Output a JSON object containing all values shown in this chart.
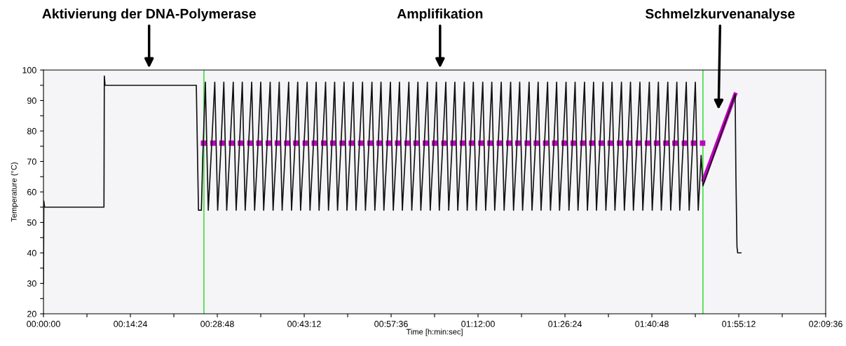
{
  "chart_data": {
    "type": "line",
    "xlabel": "Time [h:min:sec]",
    "ylabel": "Temperature (°C)",
    "xlim": [
      0,
      2.16
    ],
    "ylim": [
      20,
      100
    ],
    "xticks": [
      {
        "value": 0,
        "label": "00:00:00"
      },
      {
        "value": 0.12,
        "label": null
      },
      {
        "value": 0.24,
        "label": "00:14:24"
      },
      {
        "value": 0.36,
        "label": null
      },
      {
        "value": 0.48,
        "label": "00:28:48"
      },
      {
        "value": 0.6,
        "label": null
      },
      {
        "value": 0.72,
        "label": "00:43:12"
      },
      {
        "value": 0.84,
        "label": null
      },
      {
        "value": 0.96,
        "label": "00:57:36"
      },
      {
        "value": 1.08,
        "label": null
      },
      {
        "value": 1.2,
        "label": "01:12:00"
      },
      {
        "value": 1.32,
        "label": null
      },
      {
        "value": 1.44,
        "label": "01:26:24"
      },
      {
        "value": 1.56,
        "label": null
      },
      {
        "value": 1.68,
        "label": "01:40:48"
      },
      {
        "value": 1.8,
        "label": null
      },
      {
        "value": 1.92,
        "label": "01:55:12"
      },
      {
        "value": 2.04,
        "label": null
      },
      {
        "value": 2.16,
        "label": "02:09:36"
      }
    ],
    "yticks": [
      20,
      {
        "value": 25,
        "label": null
      },
      30,
      {
        "value": 35,
        "label": null
      },
      40,
      {
        "value": 45,
        "label": null
      },
      50,
      {
        "value": 55,
        "label": null
      },
      60,
      {
        "value": 65,
        "label": null
      },
      70,
      {
        "value": 75,
        "label": null
      },
      80,
      {
        "value": 85,
        "label": null
      },
      90,
      {
        "value": 95,
        "label": null
      },
      100
    ],
    "grid": false,
    "legend": false,
    "series": [
      {
        "color": "#111111",
        "marker": "none",
        "x": [
          0,
          0.001,
          0.003,
          0.167,
          0.168,
          0.17,
          0.422,
          0.428,
          0.436,
          0.44,
          0.447,
          0.455,
          0.463,
          0.473,
          0.481,
          0.489,
          0.498,
          0.506,
          0.514,
          0.524,
          0.532,
          0.54,
          0.549,
          0.557,
          0.565,
          0.575,
          0.583,
          0.591,
          0.6,
          0.608,
          0.616,
          0.626,
          0.634,
          0.642,
          0.651,
          0.659,
          0.667,
          0.677,
          0.685,
          0.693,
          0.702,
          0.71,
          0.718,
          0.728,
          0.736,
          0.744,
          0.753,
          0.761,
          0.769,
          0.779,
          0.787,
          0.795,
          0.804,
          0.812,
          0.82,
          0.83,
          0.838,
          0.846,
          0.855,
          0.863,
          0.871,
          0.881,
          0.889,
          0.897,
          0.907,
          0.915,
          0.923,
          0.932,
          0.94,
          0.948,
          0.958,
          0.966,
          0.974,
          0.983,
          0.991,
          0.999,
          1.009,
          1.017,
          1.025,
          1.034,
          1.042,
          1.05,
          1.06,
          1.068,
          1.076,
          1.085,
          1.093,
          1.101,
          1.111,
          1.119,
          1.127,
          1.136,
          1.144,
          1.152,
          1.162,
          1.17,
          1.178,
          1.187,
          1.195,
          1.203,
          1.213,
          1.221,
          1.229,
          1.238,
          1.246,
          1.254,
          1.264,
          1.272,
          1.28,
          1.29,
          1.298,
          1.306,
          1.315,
          1.323,
          1.331,
          1.341,
          1.349,
          1.357,
          1.366,
          1.374,
          1.382,
          1.392,
          1.4,
          1.408,
          1.417,
          1.425,
          1.433,
          1.443,
          1.451,
          1.459,
          1.468,
          1.476,
          1.484,
          1.494,
          1.502,
          1.51,
          1.519,
          1.527,
          1.535,
          1.545,
          1.553,
          1.561,
          1.57,
          1.578,
          1.586,
          1.596,
          1.604,
          1.612,
          1.621,
          1.629,
          1.637,
          1.647,
          1.655,
          1.663,
          1.673,
          1.681,
          1.689,
          1.698,
          1.706,
          1.714,
          1.724,
          1.732,
          1.74,
          1.749,
          1.757,
          1.765,
          1.775,
          1.783,
          1.791,
          1.8,
          1.808,
          1.816,
          1.821,
          1.91,
          1.912,
          1.915,
          1.917,
          1.926
        ],
        "values": [
          30,
          57,
          55,
          55,
          98,
          95,
          95,
          54,
          54,
          72,
          96,
          54,
          72,
          96,
          54,
          72,
          96,
          54,
          72,
          96,
          54,
          72,
          96,
          54,
          72,
          96,
          54,
          72,
          96,
          54,
          72,
          96,
          54,
          72,
          96,
          54,
          72,
          96,
          54,
          72,
          96,
          54,
          72,
          96,
          54,
          72,
          96,
          54,
          72,
          96,
          54,
          72,
          96,
          54,
          72,
          96,
          54,
          72,
          96,
          54,
          72,
          96,
          54,
          72,
          96,
          54,
          72,
          96,
          54,
          72,
          96,
          54,
          72,
          96,
          54,
          72,
          96,
          54,
          72,
          96,
          54,
          72,
          96,
          54,
          72,
          96,
          54,
          72,
          96,
          54,
          72,
          96,
          54,
          72,
          96,
          54,
          72,
          96,
          54,
          72,
          96,
          54,
          72,
          96,
          54,
          72,
          96,
          54,
          72,
          96,
          54,
          72,
          96,
          54,
          72,
          96,
          54,
          72,
          96,
          54,
          72,
          96,
          54,
          72,
          96,
          54,
          72,
          96,
          54,
          72,
          96,
          54,
          72,
          96,
          54,
          72,
          96,
          54,
          72,
          96,
          54,
          72,
          96,
          54,
          72,
          96,
          54,
          72,
          96,
          54,
          72,
          96,
          54,
          72,
          96,
          54,
          72,
          96,
          54,
          72,
          96,
          54,
          72,
          96,
          54,
          72,
          96,
          54,
          72,
          96,
          54,
          72,
          62,
          92,
          66,
          42,
          40,
          40
        ]
      },
      {
        "type": "scatter",
        "color": "#c000c0",
        "marker": "square",
        "x": [
          0.442,
          0.468,
          0.493,
          0.519,
          0.544,
          0.57,
          0.595,
          0.621,
          0.646,
          0.672,
          0.697,
          0.723,
          0.748,
          0.774,
          0.799,
          0.825,
          0.85,
          0.876,
          0.902,
          0.927,
          0.953,
          0.978,
          1.004,
          1.029,
          1.055,
          1.08,
          1.106,
          1.131,
          1.157,
          1.182,
          1.208,
          1.233,
          1.259,
          1.285,
          1.31,
          1.336,
          1.361,
          1.387,
          1.412,
          1.438,
          1.463,
          1.489,
          1.514,
          1.54,
          1.565,
          1.591,
          1.616,
          1.642,
          1.668,
          1.693,
          1.719,
          1.744,
          1.77,
          1.795,
          1.82
        ],
        "values": [
          76,
          76,
          76,
          76,
          76,
          76,
          76,
          76,
          76,
          76,
          76,
          76,
          76,
          76,
          76,
          76,
          76,
          76,
          76,
          76,
          76,
          76,
          76,
          76,
          76,
          76,
          76,
          76,
          76,
          76,
          76,
          76,
          76,
          76,
          76,
          76,
          76,
          76,
          76,
          76,
          76,
          76,
          76,
          76,
          76,
          76,
          76,
          76,
          76,
          76,
          76,
          76,
          76,
          76,
          76
        ]
      },
      {
        "type": "line",
        "color": "#c000c0",
        "marker": "none",
        "x": [
          1.823,
          1.91
        ],
        "values": [
          64,
          92
        ]
      }
    ],
    "ref_lines": [
      {
        "axis": "x",
        "value": 0.443,
        "color": "#44dd44"
      },
      {
        "axis": "x",
        "value": 1.821,
        "color": "#44dd44"
      }
    ],
    "annotations": [
      "Aktivierung der DNA-Polymerase",
      "Amplifikation",
      "Schmelzkurvenanalyse"
    ]
  }
}
